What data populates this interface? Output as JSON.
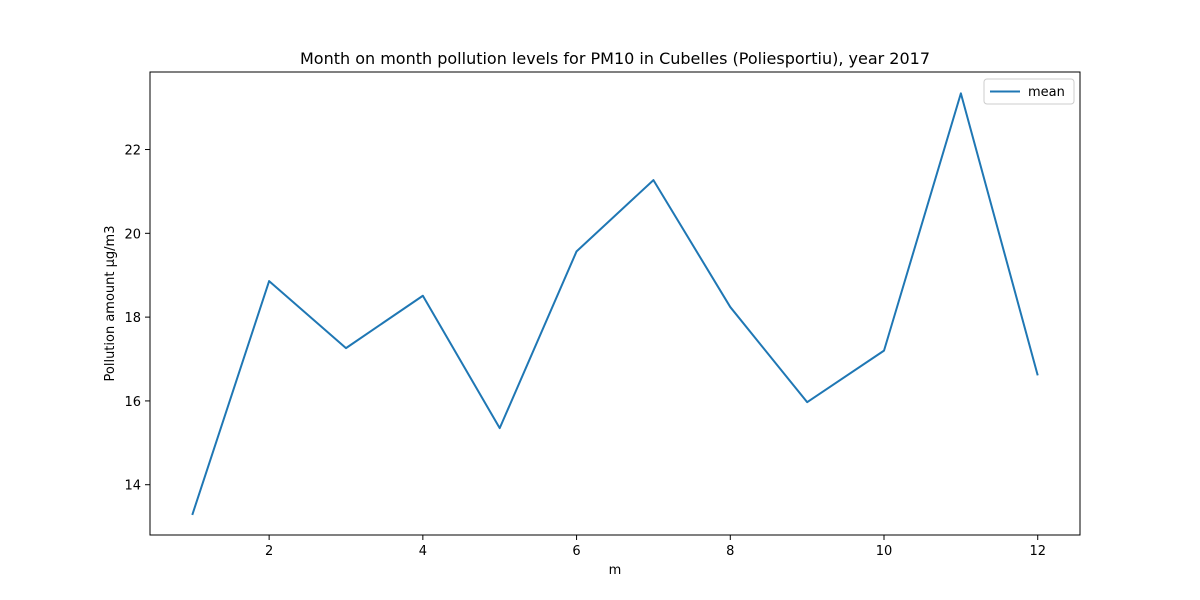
{
  "chart_data": {
    "type": "line",
    "title": "Month on month pollution levels for PM10 in Cubelles (Poliesportiu), year 2017",
    "xlabel": "m",
    "ylabel": "Pollution amount µg/m3",
    "xlim": [
      0.45,
      12.55
    ],
    "ylim": [
      12.8,
      23.85
    ],
    "xticks": [
      2,
      4,
      6,
      8,
      10,
      12
    ],
    "yticks": [
      14,
      16,
      18,
      20,
      22
    ],
    "grid": false,
    "legend_position": "top-right",
    "series": [
      {
        "name": "mean",
        "color": "#1f77b4",
        "x": [
          1,
          2,
          3,
          4,
          5,
          6,
          7,
          8,
          9,
          10,
          11,
          12
        ],
        "y": [
          13.28,
          18.86,
          17.26,
          18.51,
          15.35,
          19.57,
          21.27,
          18.24,
          15.97,
          17.2,
          23.34,
          16.61
        ]
      }
    ]
  }
}
